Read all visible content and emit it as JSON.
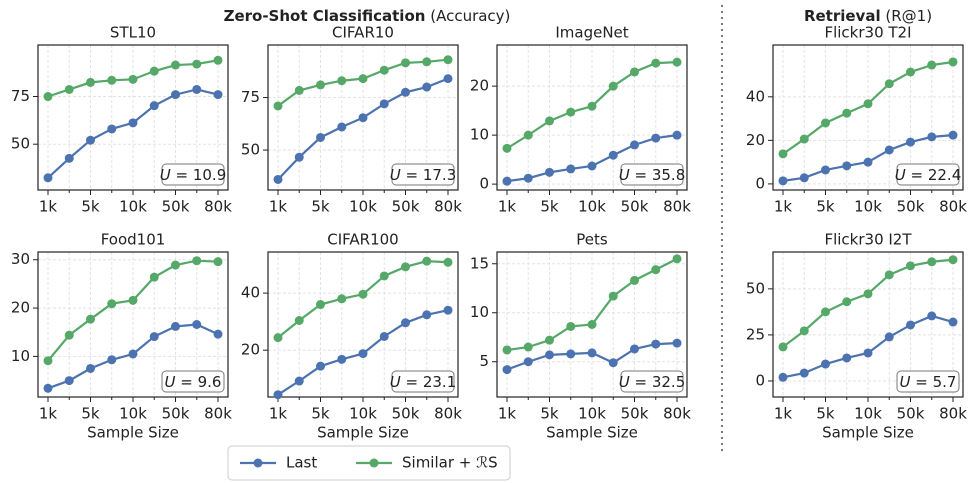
{
  "headers": [
    {
      "bold": "Zero-Shot Classification",
      "normal": "(Accuracy)"
    },
    {
      "bold": "Retrieval",
      "normal": "(R@1)"
    }
  ],
  "chart_data": [
    {
      "type": "line",
      "title": "STL10",
      "categories": [
        "1k",
        null,
        "5k",
        null,
        "10k",
        null,
        "50k",
        null,
        "80k"
      ],
      "ylim": [
        26,
        102
      ],
      "yticks": [
        50,
        75
      ],
      "grid": true,
      "annotation_symbol": "U",
      "annotation": "= 10.9",
      "series": [
        {
          "name": "Last",
          "color": "#4c72b0",
          "values": [
            32.4,
            42.6,
            52.1,
            58,
            61.2,
            70.2,
            76,
            78.7,
            76
          ]
        },
        {
          "name": "Similar + ℛS",
          "color": "#55a868",
          "values": [
            75,
            78.7,
            82.4,
            83.5,
            84,
            88.3,
            91.5,
            92,
            94
          ]
        }
      ]
    },
    {
      "type": "line",
      "title": "CIFAR10",
      "categories": [
        "1k",
        null,
        "5k",
        null,
        "10k",
        null,
        "50k",
        null,
        "80k"
      ],
      "ylim": [
        31,
        100
      ],
      "yticks": [
        50,
        75
      ],
      "grid": true,
      "annotation_symbol": "U",
      "annotation": "= 17.3",
      "series": [
        {
          "name": "Last",
          "color": "#4c72b0",
          "values": [
            36,
            46.6,
            56,
            61,
            65.4,
            72,
            77.5,
            80,
            84
          ]
        },
        {
          "name": "Similar + ℛS",
          "color": "#55a868",
          "values": [
            71,
            78.4,
            81,
            83,
            84,
            88,
            91.5,
            92,
            93
          ]
        }
      ]
    },
    {
      "type": "line",
      "title": "ImageNet",
      "categories": [
        "1k",
        null,
        "5k",
        null,
        "10k",
        null,
        "50k",
        null,
        "80k"
      ],
      "ylim": [
        -1.2,
        28.4
      ],
      "yticks": [
        0,
        10,
        20
      ],
      "grid": true,
      "annotation_symbol": "U",
      "annotation": "= 35.8",
      "series": [
        {
          "name": "Last",
          "color": "#4c72b0",
          "values": [
            0.6,
            1.2,
            2.4,
            3.1,
            3.7,
            5.9,
            8,
            9.4,
            10
          ]
        },
        {
          "name": "Similar + ℛS",
          "color": "#55a868",
          "values": [
            7.3,
            10,
            12.9,
            14.7,
            15.9,
            20,
            22.9,
            24.7,
            24.9
          ]
        }
      ]
    },
    {
      "type": "line",
      "title": "Flickr30 T2I",
      "categories": [
        "1k",
        null,
        "5k",
        null,
        "10k",
        null,
        "50k",
        null,
        "80k"
      ],
      "ylim": [
        -2.8,
        63.8
      ],
      "yticks": [
        0,
        20,
        40
      ],
      "grid": true,
      "annotation_symbol": "U",
      "annotation": "= 22.4",
      "series": [
        {
          "name": "Last",
          "color": "#4c72b0",
          "values": [
            1.4,
            2.8,
            6.4,
            8.3,
            10,
            15.6,
            19.2,
            21.6,
            22.4
          ]
        },
        {
          "name": "Similar + ℛS",
          "color": "#55a868",
          "values": [
            13.8,
            20.6,
            28,
            32.5,
            36.8,
            46,
            51.4,
            54.6,
            56
          ]
        }
      ]
    },
    {
      "type": "line",
      "title": "Food101",
      "xlabel": "Sample Size",
      "categories": [
        "1k",
        null,
        "5k",
        null,
        "10k",
        null,
        "50k",
        null,
        "80k"
      ],
      "ylim": [
        1.6,
        31.6
      ],
      "yticks": [
        10,
        20,
        30
      ],
      "grid": true,
      "annotation_symbol": "U",
      "annotation": "= 9.6",
      "series": [
        {
          "name": "Last",
          "color": "#4c72b0",
          "values": [
            3.4,
            5,
            7.5,
            9.3,
            10.5,
            14.1,
            16.2,
            16.6,
            14.6
          ]
        },
        {
          "name": "Similar + ℛS",
          "color": "#55a868",
          "values": [
            9.1,
            14.4,
            17.7,
            20.9,
            21.6,
            26.4,
            28.9,
            29.8,
            29.6
          ]
        }
      ]
    },
    {
      "type": "line",
      "title": "CIFAR100",
      "xlabel": "Sample Size",
      "categories": [
        "1k",
        null,
        "5k",
        null,
        "10k",
        null,
        "50k",
        null,
        "80k"
      ],
      "ylim": [
        3.6,
        54.4
      ],
      "yticks": [
        20,
        40
      ],
      "grid": true,
      "annotation_symbol": "U",
      "annotation": "= 23.1",
      "series": [
        {
          "name": "Last",
          "color": "#4c72b0",
          "values": [
            4.4,
            9.2,
            14.4,
            16.8,
            18.8,
            24.8,
            29.6,
            32.4,
            34
          ]
        },
        {
          "name": "Similar + ℛS",
          "color": "#55a868",
          "values": [
            24.4,
            30.4,
            36,
            38,
            39.6,
            46,
            49.2,
            51.2,
            50.8
          ]
        }
      ]
    },
    {
      "type": "line",
      "title": "Pets",
      "xlabel": "Sample Size",
      "categories": [
        "1k",
        null,
        "5k",
        null,
        "10k",
        null,
        "50k",
        null,
        "80k"
      ],
      "ylim": [
        1.4,
        16.2
      ],
      "yticks": [
        5,
        10,
        15
      ],
      "grid": true,
      "annotation_symbol": "U",
      "annotation": "= 32.5",
      "series": [
        {
          "name": "Last",
          "color": "#4c72b0",
          "values": [
            4.2,
            5,
            5.7,
            5.8,
            5.9,
            4.9,
            6.3,
            6.8,
            6.9
          ]
        },
        {
          "name": "Similar + ℛS",
          "color": "#55a868",
          "values": [
            6.2,
            6.5,
            7.2,
            8.6,
            8.8,
            11.7,
            13.3,
            14.4,
            15.5
          ]
        }
      ]
    },
    {
      "type": "line",
      "title": "Flickr30 I2T",
      "xlabel": "Sample Size",
      "categories": [
        "1k",
        null,
        "5k",
        null,
        "10k",
        null,
        "50k",
        null,
        "80k"
      ],
      "ylim": [
        -8.7,
        70
      ],
      "yticks": [
        0,
        25,
        50
      ],
      "grid": true,
      "annotation_symbol": "U",
      "annotation": "= 5.7",
      "series": [
        {
          "name": "Last",
          "color": "#4c72b0",
          "values": [
            2,
            4.3,
            9.2,
            12.5,
            15.2,
            23.9,
            30.4,
            35.3,
            32
          ]
        },
        {
          "name": "Similar + ℛS",
          "color": "#55a868",
          "values": [
            18.5,
            27.2,
            37.5,
            43,
            47.3,
            57.6,
            62.5,
            64.7,
            65.8
          ]
        }
      ]
    }
  ]
}
